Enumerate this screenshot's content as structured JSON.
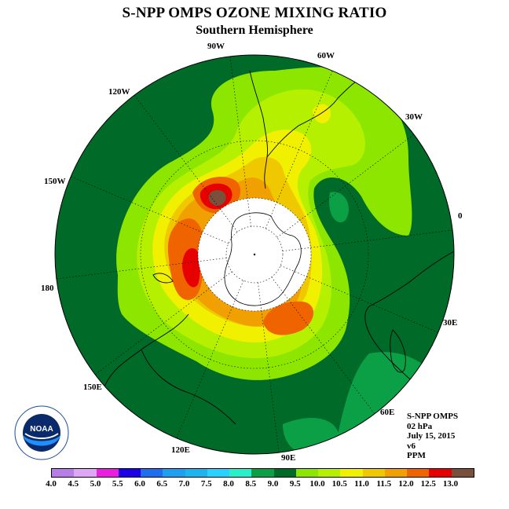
{
  "title": "S-NPP OMPS OZONE MIXING RATIO",
  "subtitle": "Southern Hemisphere",
  "longitude_labels": [
    "90W",
    "60W",
    "30W",
    "0",
    "30E",
    "60E",
    "90E",
    "120E",
    "150E",
    "180",
    "150W",
    "120W"
  ],
  "info": {
    "instrument": "S-NPP OMPS",
    "level": "02 hPa",
    "date": "July 15, 2015",
    "version": "v6",
    "units": "PPM"
  },
  "colorbar": {
    "labels": [
      "4.0",
      "4.5",
      "5.0",
      "5.5",
      "6.0",
      "6.5",
      "7.0",
      "7.5",
      "8.0",
      "8.5",
      "9.0",
      "9.5",
      "10.0",
      "10.5",
      "11.0",
      "11.5",
      "12.0",
      "12.5",
      "13.0"
    ],
    "colors": [
      "#b77ee8",
      "#e0a6f6",
      "#ea1ee0",
      "#1e00e6",
      "#1e6ef0",
      "#1ea0f0",
      "#1eb4f0",
      "#28d2ff",
      "#28f0c8",
      "#0ca046",
      "#006a28",
      "#8ce600",
      "#b4f000",
      "#f0f000",
      "#f0c800",
      "#f0a000",
      "#f06400",
      "#e60000",
      "#78503c"
    ]
  },
  "logo": {
    "text": "NOAA",
    "ring_text": "NATIONAL OCEANIC AND ATMOSPHERIC ADMINISTRATION · U.S. DEPARTMENT OF COMMERCE"
  },
  "map_colors": {
    "c8_5": "#0ca046",
    "c9_0": "#006a28",
    "c9_5": "#8ce600",
    "c10_0": "#b4f000",
    "c10_5": "#f0f000",
    "c11_0": "#f0c800",
    "c11_5": "#f0a000",
    "c12_0": "#f06400",
    "c12_5": "#e60000",
    "c13_0": "#78503c"
  }
}
